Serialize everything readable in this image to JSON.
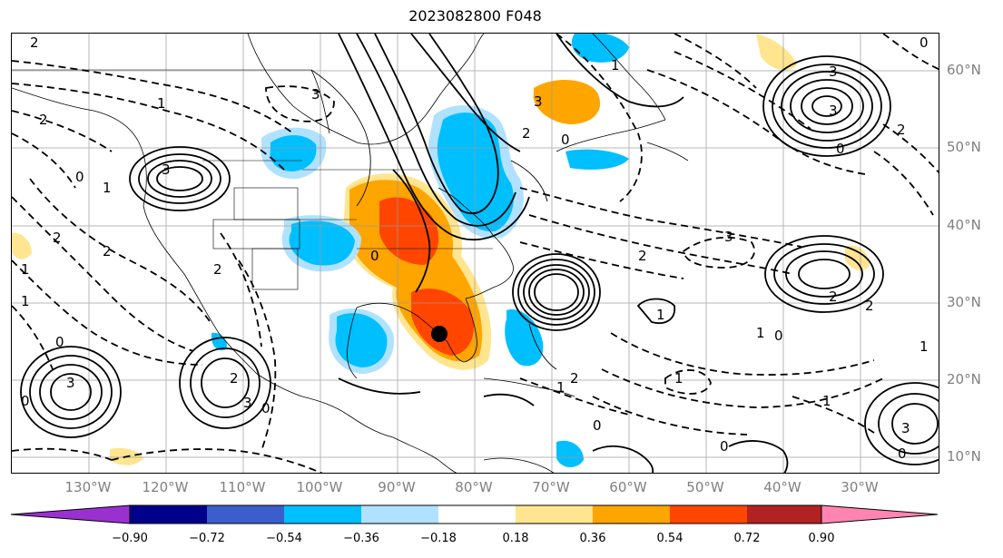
{
  "title": "2023082800 F048",
  "lon_labels": [
    "130°W",
    "120°W",
    "110°W",
    "100°W",
    "90°W",
    "80°W",
    "70°W",
    "60°W",
    "50°W",
    "40°W",
    "30°W"
  ],
  "lat_labels": [
    "60°N",
    "50°N",
    "40°N",
    "30°N",
    "20°N",
    "10°N"
  ],
  "colorbar": {
    "ticks": [
      "−0.90",
      "−0.72",
      "−0.54",
      "−0.36",
      "−0.18",
      "0.18",
      "0.36",
      "0.54",
      "0.72",
      "0.90"
    ],
    "colors": [
      "#9b30d0",
      "#00008b",
      "#3a5fcd",
      "#00bfff",
      "#b0e2ff",
      "#ffffff",
      "#ffe58f",
      "#ffa500",
      "#ff4500",
      "#b22222",
      "#ff85b0"
    ]
  },
  "contour_labels": [
    "2",
    "1",
    "2",
    "3",
    "3",
    "0",
    "1",
    "2",
    "2",
    "0",
    "1",
    "3",
    "2",
    "0",
    "3",
    "2",
    "0",
    "3",
    "2",
    "1",
    "0",
    "2",
    "3",
    "1",
    "0",
    "3",
    "1",
    "2",
    "0",
    "0",
    "2",
    "1",
    "3",
    "0",
    "1",
    "2",
    "3",
    "0",
    "0",
    "1",
    "2",
    "0",
    "1",
    "1"
  ],
  "marker": {
    "lon": -84,
    "lat": 25.5
  }
}
